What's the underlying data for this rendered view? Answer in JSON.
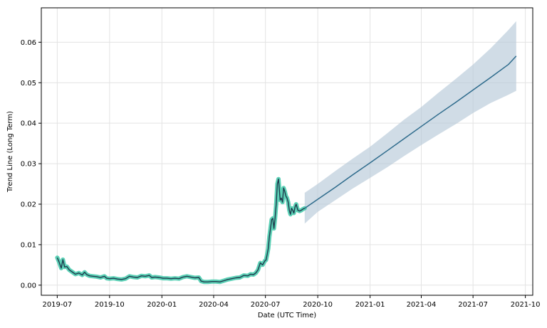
{
  "chart_data": {
    "type": "line",
    "title": "",
    "xlabel": "Date (UTC Time)",
    "ylabel": "Trend Line (Long Term)",
    "ylim": [
      -0.0025,
      0.0685
    ],
    "xlim": [
      "2019-06-03",
      "2021-10-14"
    ],
    "grid": true,
    "x_ticks": [
      {
        "date": "2019-07-01",
        "label": "2019-07"
      },
      {
        "date": "2019-10-01",
        "label": "2019-10"
      },
      {
        "date": "2020-01-01",
        "label": "2020-01"
      },
      {
        "date": "2020-04-01",
        "label": "2020-04"
      },
      {
        "date": "2020-07-01",
        "label": "2020-07"
      },
      {
        "date": "2020-10-01",
        "label": "2020-10"
      },
      {
        "date": "2021-01-01",
        "label": "2021-01"
      },
      {
        "date": "2021-04-01",
        "label": "2021-04"
      },
      {
        "date": "2021-07-01",
        "label": "2021-07"
      },
      {
        "date": "2021-10-01",
        "label": "2021-10"
      }
    ],
    "y_ticks": [
      {
        "value": 0.0,
        "label": "0.00"
      },
      {
        "value": 0.01,
        "label": "0.01"
      },
      {
        "value": 0.02,
        "label": "0.02"
      },
      {
        "value": 0.03,
        "label": "0.03"
      },
      {
        "value": 0.04,
        "label": "0.04"
      },
      {
        "value": 0.05,
        "label": "0.05"
      },
      {
        "value": 0.06,
        "label": "0.06"
      }
    ],
    "colors": {
      "history_line": "#1f3b4d",
      "history_band": "#40c9a9",
      "forecast_line": "#2e6b8c",
      "forecast_band": "#b7cad8",
      "grid": "#e3e3e3"
    },
    "series": [
      {
        "kind": "history",
        "x": [
          "2019-07-01",
          "2019-07-04",
          "2019-07-08",
          "2019-07-11",
          "2019-07-14",
          "2019-07-18",
          "2019-07-22",
          "2019-07-27",
          "2019-08-02",
          "2019-08-08",
          "2019-08-14",
          "2019-08-18",
          "2019-08-22",
          "2019-08-27",
          "2019-09-02",
          "2019-09-08",
          "2019-09-15",
          "2019-09-22",
          "2019-09-26",
          "2019-10-01",
          "2019-10-08",
          "2019-10-15",
          "2019-10-22",
          "2019-10-29",
          "2019-11-05",
          "2019-11-12",
          "2019-11-19",
          "2019-11-26",
          "2019-12-03",
          "2019-12-10",
          "2019-12-14",
          "2019-12-20",
          "2019-12-27",
          "2020-01-03",
          "2020-01-10",
          "2020-01-17",
          "2020-01-24",
          "2020-01-31",
          "2020-02-07",
          "2020-02-14",
          "2020-02-21",
          "2020-02-28",
          "2020-03-06",
          "2020-03-10",
          "2020-03-15",
          "2020-03-22",
          "2020-03-29",
          "2020-04-05",
          "2020-04-12",
          "2020-04-19",
          "2020-04-26",
          "2020-05-03",
          "2020-05-10",
          "2020-05-17",
          "2020-05-24",
          "2020-05-31",
          "2020-06-05",
          "2020-06-10",
          "2020-06-14",
          "2020-06-18",
          "2020-06-22",
          "2020-06-26",
          "2020-06-30",
          "2020-07-02",
          "2020-07-04",
          "2020-07-06",
          "2020-07-08",
          "2020-07-10",
          "2020-07-12",
          "2020-07-14",
          "2020-07-16",
          "2020-07-18",
          "2020-07-20",
          "2020-07-22",
          "2020-07-24",
          "2020-07-27",
          "2020-07-29",
          "2020-07-31",
          "2020-08-02",
          "2020-08-04",
          "2020-08-06",
          "2020-08-08",
          "2020-08-10",
          "2020-08-12",
          "2020-08-14",
          "2020-08-16",
          "2020-08-18",
          "2020-08-20",
          "2020-08-22",
          "2020-08-24",
          "2020-08-27",
          "2020-08-30",
          "2020-09-02",
          "2020-09-05",
          "2020-09-08"
        ],
        "y": [
          0.0068,
          0.0058,
          0.0042,
          0.0063,
          0.0045,
          0.0046,
          0.0038,
          0.0033,
          0.0027,
          0.003,
          0.0025,
          0.0032,
          0.0026,
          0.0023,
          0.0022,
          0.0021,
          0.0019,
          0.0022,
          0.0017,
          0.0016,
          0.0017,
          0.0015,
          0.0014,
          0.0016,
          0.0022,
          0.002,
          0.0019,
          0.0023,
          0.0022,
          0.0024,
          0.0019,
          0.002,
          0.0019,
          0.0017,
          0.0017,
          0.0016,
          0.0017,
          0.0016,
          0.002,
          0.0022,
          0.002,
          0.0018,
          0.0019,
          0.001,
          0.0008,
          0.0008,
          0.0009,
          0.0009,
          0.0008,
          0.0011,
          0.0014,
          0.0016,
          0.0018,
          0.0019,
          0.0024,
          0.0023,
          0.0027,
          0.0026,
          0.003,
          0.0038,
          0.0055,
          0.005,
          0.006,
          0.0062,
          0.0075,
          0.009,
          0.012,
          0.014,
          0.0162,
          0.0165,
          0.014,
          0.0165,
          0.02,
          0.025,
          0.0262,
          0.021,
          0.0215,
          0.0205,
          0.024,
          0.0232,
          0.022,
          0.0215,
          0.0205,
          0.0185,
          0.0175,
          0.019,
          0.0185,
          0.0178,
          0.0193,
          0.02,
          0.0185,
          0.0183,
          0.0185,
          0.0188,
          0.019
        ]
      },
      {
        "kind": "forecast",
        "x": [
          "2020-09-08",
          "2020-10-01",
          "2020-11-01",
          "2020-12-01",
          "2021-01-01",
          "2021-02-01",
          "2021-03-01",
          "2021-04-01",
          "2021-05-01",
          "2021-06-01",
          "2021-07-01",
          "2021-08-01",
          "2021-09-01",
          "2021-09-15"
        ],
        "y": [
          0.019,
          0.0212,
          0.0242,
          0.0272,
          0.0302,
          0.0333,
          0.0361,
          0.0392,
          0.0422,
          0.0452,
          0.0482,
          0.0513,
          0.0545,
          0.0566
        ],
        "lower": [
          0.0152,
          0.0181,
          0.021,
          0.0238,
          0.0265,
          0.0292,
          0.0318,
          0.0346,
          0.0372,
          0.0398,
          0.0425,
          0.045,
          0.047,
          0.048
        ],
        "upper": [
          0.0228,
          0.025,
          0.0282,
          0.0312,
          0.0342,
          0.0376,
          0.0408,
          0.044,
          0.0475,
          0.051,
          0.0545,
          0.0585,
          0.063,
          0.0652
        ]
      }
    ]
  }
}
